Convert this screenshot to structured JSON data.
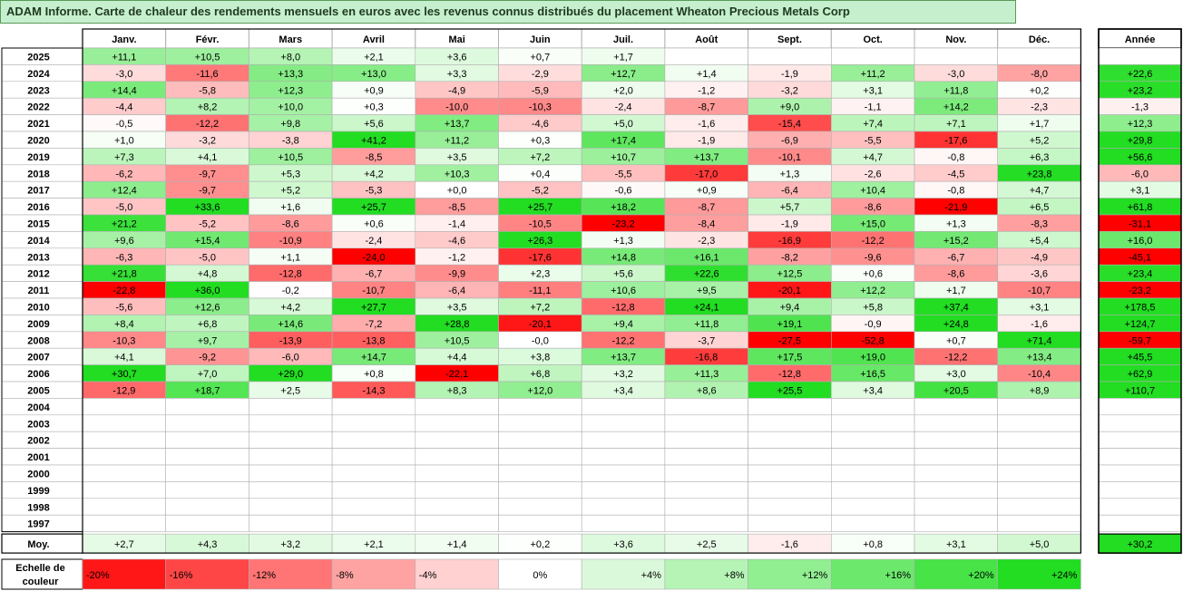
{
  "title": "ADAM Informe. Carte de chaleur des rendements mensuels en euros avec les revenus connus distribués du placement Wheaton Precious Metals Corp",
  "chart_data": {
    "type": "heatmap",
    "columns": [
      "Janv.",
      "Févr.",
      "Mars",
      "Avril",
      "Mai",
      "Juin",
      "Juil.",
      "Août",
      "Sept.",
      "Oct.",
      "Nov.",
      "Déc."
    ],
    "year_column_label": "Année",
    "rows": [
      {
        "year": "2025",
        "months": [
          "+11,1",
          "+10,5",
          "+8,0",
          "+2,1",
          "+3,6",
          "+0,7",
          "+1,7",
          "",
          "",
          "",
          "",
          ""
        ],
        "annual": ""
      },
      {
        "year": "2024",
        "months": [
          "-3,0",
          "-11,6",
          "+13,3",
          "+13,0",
          "+3,3",
          "-2,9",
          "+12,7",
          "+1,4",
          "-1,9",
          "+11,2",
          "-3,0",
          "-8,0"
        ],
        "annual": "+22,6"
      },
      {
        "year": "2023",
        "months": [
          "+14,4",
          "-5,8",
          "+12,3",
          "+0,9",
          "-4,9",
          "-5,9",
          "+2,0",
          "-1,2",
          "-3,2",
          "+3,1",
          "+11,8",
          "+0,2"
        ],
        "annual": "+23,2"
      },
      {
        "year": "2022",
        "months": [
          "-4,4",
          "+8,2",
          "+10,0",
          "+0,3",
          "-10,0",
          "-10,3",
          "-2,4",
          "-8,7",
          "+9,0",
          "-1,1",
          "+14,2",
          "-2,3"
        ],
        "annual": "-1,3"
      },
      {
        "year": "2021",
        "months": [
          "-0,5",
          "-12,2",
          "+9,8",
          "+5,6",
          "+13,7",
          "-4,6",
          "+5,0",
          "-1,6",
          "-15,4",
          "+7,4",
          "+7,1",
          "+1,7"
        ],
        "annual": "+12,3"
      },
      {
        "year": "2020",
        "months": [
          "+1,0",
          "-3,2",
          "-3,8",
          "+41,2",
          "+11,2",
          "+0,3",
          "+17,4",
          "-1,9",
          "-6,9",
          "-5,5",
          "-17,6",
          "+5,2"
        ],
        "annual": "+29,8"
      },
      {
        "year": "2019",
        "months": [
          "+7,3",
          "+4,1",
          "+10,5",
          "-8,5",
          "+3,5",
          "+7,2",
          "+10,7",
          "+13,7",
          "-10,1",
          "+4,7",
          "-0,8",
          "+6,3"
        ],
        "annual": "+56,6"
      },
      {
        "year": "2018",
        "months": [
          "-6,2",
          "-9,7",
          "+5,3",
          "+4,2",
          "+10,3",
          "+0,4",
          "-5,5",
          "-17,0",
          "+1,3",
          "-2,6",
          "-4,5",
          "+23,8"
        ],
        "annual": "-6,0"
      },
      {
        "year": "2017",
        "months": [
          "+12,4",
          "-9,7",
          "+5,2",
          "-5,3",
          "+0,0",
          "-5,2",
          "-0,6",
          "+0,9",
          "-6,4",
          "+10,4",
          "-0,8",
          "+4,7"
        ],
        "annual": "+3,1"
      },
      {
        "year": "2016",
        "months": [
          "-5,0",
          "+33,6",
          "+1,6",
          "+25,7",
          "-8,5",
          "+25,7",
          "+18,2",
          "-8,7",
          "+5,7",
          "-8,6",
          "-21,9",
          "+6,5"
        ],
        "annual": "+61,8"
      },
      {
        "year": "2015",
        "months": [
          "+21,2",
          "-5,2",
          "-8,6",
          "+0,6",
          "-1,4",
          "-10,5",
          "-23,2",
          "-8,4",
          "-1,9",
          "+15,0",
          "+1,3",
          "-8,3"
        ],
        "annual": "-31,1"
      },
      {
        "year": "2014",
        "months": [
          "+9,6",
          "+15,4",
          "-10,9",
          "-2,4",
          "-4,6",
          "+26,3",
          "+1,3",
          "-2,3",
          "-16,9",
          "-12,2",
          "+15,2",
          "+5,4"
        ],
        "annual": "+16,0"
      },
      {
        "year": "2013",
        "months": [
          "-6,3",
          "-5,0",
          "+1,1",
          "-24,0",
          "-1,2",
          "-17,6",
          "+14,8",
          "+16,1",
          "-8,2",
          "-9,6",
          "-6,7",
          "-4,9"
        ],
        "annual": "-45,1"
      },
      {
        "year": "2012",
        "months": [
          "+21,8",
          "+4,8",
          "-12,8",
          "-6,7",
          "-9,9",
          "+2,3",
          "+5,6",
          "+22,6",
          "+12,5",
          "+0,6",
          "-8,6",
          "-3,6"
        ],
        "annual": "+23,4"
      },
      {
        "year": "2011",
        "months": [
          "-22,8",
          "+36,0",
          "-0,2",
          "-10,7",
          "-6,4",
          "-11,1",
          "+10,6",
          "+9,5",
          "-20,1",
          "+12,2",
          "+1,7",
          "-10,7"
        ],
        "annual": "-23,2"
      },
      {
        "year": "2010",
        "months": [
          "-5,6",
          "+12,6",
          "+4,2",
          "+27,7",
          "+3,5",
          "+7,2",
          "-12,8",
          "+24,1",
          "+9,4",
          "+5,8",
          "+37,4",
          "+3,1"
        ],
        "annual": "+178,5"
      },
      {
        "year": "2009",
        "months": [
          "+8,4",
          "+6,8",
          "+14,6",
          "-7,2",
          "+28,8",
          "-20,1",
          "+9,4",
          "+11,8",
          "+19,1",
          "-0,9",
          "+24,8",
          "-1,6"
        ],
        "annual": "+124,7"
      },
      {
        "year": "2008",
        "months": [
          "-10,3",
          "+9,7",
          "-13,9",
          "-13,8",
          "+10,5",
          "-0,0",
          "-12,2",
          "-3,7",
          "-27,5",
          "-52,8",
          "+0,7",
          "+71,4"
        ],
        "annual": "-59,7"
      },
      {
        "year": "2007",
        "months": [
          "+4,1",
          "-9,2",
          "-6,0",
          "+14,7",
          "+4,4",
          "+3,8",
          "+13,7",
          "-16,8",
          "+17,5",
          "+19,0",
          "-12,2",
          "+13,4"
        ],
        "annual": "+45,5"
      },
      {
        "year": "2006",
        "months": [
          "+30,7",
          "+7,0",
          "+29,0",
          "+0,8",
          "-22,1",
          "+6,8",
          "+3,2",
          "+11,3",
          "-12,8",
          "+16,5",
          "+3,0",
          "-10,4"
        ],
        "annual": "+62,9"
      },
      {
        "year": "2005",
        "months": [
          "-12,9",
          "+18,7",
          "+2,5",
          "-14,3",
          "+8,3",
          "+12,0",
          "+3,4",
          "+8,6",
          "+25,5",
          "+3,4",
          "+20,5",
          "+8,9"
        ],
        "annual": "+110,7"
      },
      {
        "year": "2004",
        "months": [
          "",
          "",
          "",
          "",
          "",
          "",
          "",
          "",
          "",
          "",
          "",
          ""
        ],
        "annual": ""
      },
      {
        "year": "2003",
        "months": [
          "",
          "",
          "",
          "",
          "",
          "",
          "",
          "",
          "",
          "",
          "",
          ""
        ],
        "annual": ""
      },
      {
        "year": "2002",
        "months": [
          "",
          "",
          "",
          "",
          "",
          "",
          "",
          "",
          "",
          "",
          "",
          ""
        ],
        "annual": ""
      },
      {
        "year": "2001",
        "months": [
          "",
          "",
          "",
          "",
          "",
          "",
          "",
          "",
          "",
          "",
          "",
          ""
        ],
        "annual": ""
      },
      {
        "year": "2000",
        "months": [
          "",
          "",
          "",
          "",
          "",
          "",
          "",
          "",
          "",
          "",
          "",
          ""
        ],
        "annual": ""
      },
      {
        "year": "1999",
        "months": [
          "",
          "",
          "",
          "",
          "",
          "",
          "",
          "",
          "",
          "",
          "",
          ""
        ],
        "annual": ""
      },
      {
        "year": "1998",
        "months": [
          "",
          "",
          "",
          "",
          "",
          "",
          "",
          "",
          "",
          "",
          "",
          ""
        ],
        "annual": ""
      },
      {
        "year": "1997",
        "months": [
          "",
          "",
          "",
          "",
          "",
          "",
          "",
          "",
          "",
          "",
          "",
          ""
        ],
        "annual": ""
      }
    ],
    "average": {
      "label": "Moy.",
      "months": [
        "+2,7",
        "+4,3",
        "+3,2",
        "+2,1",
        "+1,4",
        "+0,2",
        "+3,6",
        "+2,5",
        "-1,6",
        "+0,8",
        "+3,1",
        "+5,0"
      ],
      "annual": "+30,2"
    },
    "color_scale": {
      "label_line1": "Echelle de",
      "label_line2": "couleur",
      "stops": [
        {
          "label": "-20%",
          "value": -20
        },
        {
          "label": "-16%",
          "value": -16
        },
        {
          "label": "-12%",
          "value": -12
        },
        {
          "label": "-8%",
          "value": -8
        },
        {
          "label": "-4%",
          "value": -4
        },
        {
          "label": "0%",
          "value": 0
        },
        {
          "label": "+4%",
          "value": 4
        },
        {
          "label": "+8%",
          "value": 8
        },
        {
          "label": "+12%",
          "value": 12
        },
        {
          "label": "+16%",
          "value": 16
        },
        {
          "label": "+20%",
          "value": 20
        },
        {
          "label": "+24%",
          "value": 24
        }
      ]
    },
    "colors": {
      "negative_max": "#ff0000",
      "neutral": "#ffffff",
      "positive_max": "#22dd22",
      "title_bg": "#c6efce",
      "grid": "#b0b0b0"
    }
  }
}
